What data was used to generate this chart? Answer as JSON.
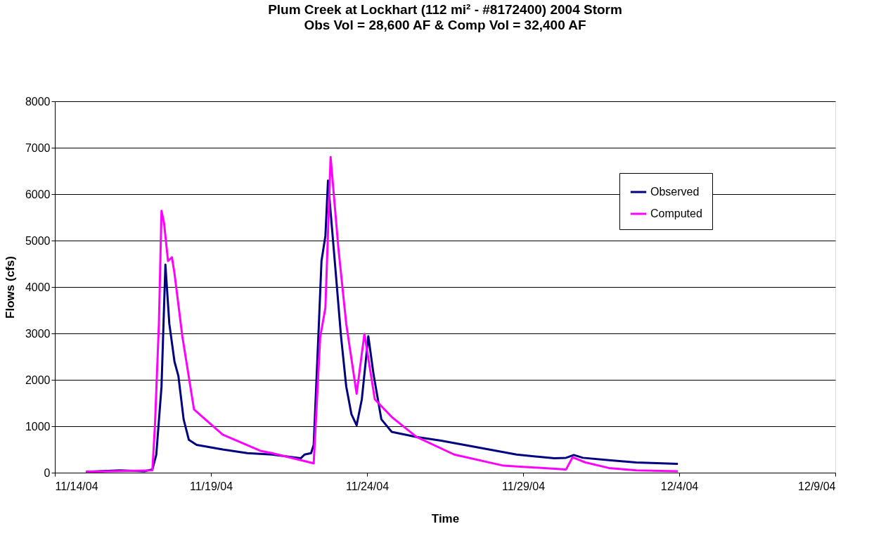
{
  "chart_data": {
    "type": "line",
    "title": "Plum Creek at Lockhart (112 mi² - #8172400) 2004 Storm",
    "subtitle": "Obs Vol =  28,600 AF & Comp Vol = 32,400 AF",
    "xlabel": "Time",
    "ylabel": "Flows (cfs)",
    "xlim": [
      "2004-11-14",
      "2004-12-09"
    ],
    "xticks": [
      {
        "value": "2004-11-14",
        "label": "11/14/04"
      },
      {
        "value": "2004-11-19",
        "label": "11/19/04"
      },
      {
        "value": "2004-11-24",
        "label": "11/24/04"
      },
      {
        "value": "2004-11-29",
        "label": "11/29/04"
      },
      {
        "value": "2004-12-04",
        "label": "12/4/04"
      },
      {
        "value": "2004-12-09",
        "label": "12/9/04"
      }
    ],
    "ylim": [
      0,
      8000
    ],
    "yticks": [
      0,
      1000,
      2000,
      3000,
      4000,
      5000,
      6000,
      7000,
      8000
    ],
    "grid": "y",
    "legend": "top right",
    "marker": "none",
    "line_style": "solid",
    "series": [
      {
        "name": "Observed",
        "color": "#000080",
        "x": [
          "2004-11-15T00:00",
          "2004-11-16T02:00",
          "2004-11-16T21:00",
          "2004-11-17T03:00",
          "2004-11-17T06:00",
          "2004-11-17T10:00",
          "2004-11-17T13:00",
          "2004-11-17T16:00",
          "2004-11-17T20:00",
          "2004-11-17T23:00",
          "2004-11-18T03:00",
          "2004-11-18T07:00",
          "2004-11-18T13:00",
          "2004-11-19T09:00",
          "2004-11-20T04:00",
          "2004-11-20T23:00",
          "2004-11-21T21:00",
          "2004-11-22T00:00",
          "2004-11-22T05:00",
          "2004-11-22T07:00",
          "2004-11-22T11:00",
          "2004-11-22T13:00",
          "2004-11-22T16:00",
          "2004-11-22T18:00",
          "2004-11-23T00:00",
          "2004-11-23T04:00",
          "2004-11-23T08:00",
          "2004-11-23T12:00",
          "2004-11-23T16:00",
          "2004-11-23T20:00",
          "2004-11-24T01:00",
          "2004-11-24T05:00",
          "2004-11-24T11:00",
          "2004-11-24T19:00",
          "2004-11-25T14:00",
          "2004-11-26T09:00",
          "2004-11-27T10:00",
          "2004-11-28T19:00",
          "2004-11-30T00:00",
          "2004-11-30T09:00",
          "2004-11-30T15:00",
          "2004-11-30T22:00",
          "2004-12-01T18:00",
          "2004-12-02T15:00",
          "2004-12-03T23:00"
        ],
        "values": [
          20,
          50,
          30,
          70,
          390,
          1850,
          4480,
          3210,
          2390,
          2080,
          1150,
          710,
          600,
          500,
          420,
          390,
          310,
          390,
          420,
          600,
          3210,
          4560,
          5100,
          6290,
          4290,
          2940,
          1860,
          1260,
          1020,
          1580,
          2940,
          2120,
          1150,
          880,
          770,
          690,
          560,
          390,
          310,
          320,
          380,
          320,
          270,
          220,
          190
        ]
      },
      {
        "name": "Computed",
        "color": "#ff00ff",
        "x": [
          "2004-11-15T00:00",
          "2004-11-17T03:00",
          "2004-11-17T05:00",
          "2004-11-17T08:00",
          "2004-11-17T10:00",
          "2004-11-17T12:00",
          "2004-11-17T15:00",
          "2004-11-17T18:00",
          "2004-11-17T20:00",
          "2004-11-18T02:00",
          "2004-11-18T11:00",
          "2004-11-19T09:00",
          "2004-11-20T14:00",
          "2004-11-20T23:00",
          "2004-11-22T07:00",
          "2004-11-22T12:00",
          "2004-11-22T16:00",
          "2004-11-22T20:00",
          "2004-11-23T02:00",
          "2004-11-23T08:00",
          "2004-11-23T16:00",
          "2004-11-23T22:00",
          "2004-11-24T06:00",
          "2004-11-24T19:00",
          "2004-11-25T14:00",
          "2004-11-26T19:00",
          "2004-11-28T09:00",
          "2004-11-30T09:00",
          "2004-11-30T14:00",
          "2004-12-01T00:00",
          "2004-12-01T18:00",
          "2004-12-02T15:00",
          "2004-12-03T23:00"
        ],
        "values": [
          20,
          50,
          1040,
          3210,
          5640,
          5370,
          4560,
          4640,
          4290,
          2940,
          1360,
          820,
          470,
          420,
          200,
          2920,
          3550,
          6800,
          4830,
          3210,
          1700,
          2990,
          1580,
          1200,
          770,
          390,
          150,
          70,
          330,
          220,
          100,
          50,
          30
        ]
      }
    ]
  }
}
